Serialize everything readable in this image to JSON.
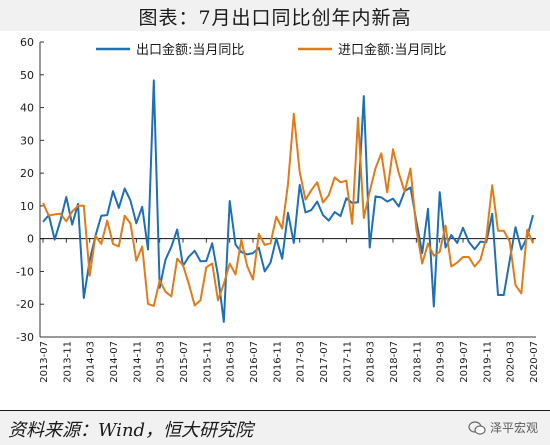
{
  "title": "图表：7月出口同比创年内新高",
  "source": "资料来源：Wind，恒大研究院",
  "watermark": "泽平宏观",
  "chart_data": {
    "type": "line",
    "x": [
      "2013-07",
      "2013-08",
      "2013-09",
      "2013-10",
      "2013-11",
      "2013-12",
      "2014-01",
      "2014-02",
      "2014-03",
      "2014-04",
      "2014-05",
      "2014-06",
      "2014-07",
      "2014-08",
      "2014-09",
      "2014-10",
      "2014-11",
      "2014-12",
      "2015-01",
      "2015-02",
      "2015-03",
      "2015-04",
      "2015-05",
      "2015-06",
      "2015-07",
      "2015-08",
      "2015-09",
      "2015-10",
      "2015-11",
      "2015-12",
      "2016-01",
      "2016-02",
      "2016-03",
      "2016-04",
      "2016-05",
      "2016-06",
      "2016-07",
      "2016-08",
      "2016-09",
      "2016-10",
      "2016-11",
      "2016-12",
      "2017-01",
      "2017-02",
      "2017-03",
      "2017-04",
      "2017-05",
      "2017-06",
      "2017-07",
      "2017-08",
      "2017-09",
      "2017-10",
      "2017-11",
      "2017-12",
      "2018-01",
      "2018-02",
      "2018-03",
      "2018-04",
      "2018-05",
      "2018-06",
      "2018-07",
      "2018-08",
      "2018-09",
      "2018-10",
      "2018-11",
      "2018-12",
      "2019-01",
      "2019-02",
      "2019-03",
      "2019-04",
      "2019-05",
      "2019-06",
      "2019-07",
      "2019-08",
      "2019-09",
      "2019-10",
      "2019-11",
      "2019-12",
      "2020-01",
      "2020-02",
      "2020-03",
      "2020-04",
      "2020-05",
      "2020-06",
      "2020-07"
    ],
    "x_tick_labels": [
      "2013-07",
      "2013-11",
      "2014-03",
      "2014-07",
      "2014-11",
      "2015-03",
      "2015-07",
      "2015-11",
      "2016-03",
      "2016-07",
      "2016-11",
      "2017-03",
      "2017-07",
      "2017-11",
      "2018-03",
      "2018-07",
      "2018-11",
      "2019-03",
      "2019-07",
      "2019-11",
      "2020-03",
      "2020-07"
    ],
    "series": [
      {
        "name": "出口金额:当月同比",
        "color": "#1f6fb4",
        "values": [
          5.1,
          7.2,
          -0.3,
          5.6,
          12.7,
          4.3,
          10.6,
          -18.1,
          -6.6,
          0.9,
          7.0,
          7.2,
          14.5,
          9.4,
          15.3,
          11.6,
          4.7,
          9.7,
          -3.3,
          48.3,
          -15.0,
          -6.4,
          -2.5,
          2.8,
          -8.3,
          -5.5,
          -3.7,
          -6.9,
          -6.8,
          -1.4,
          -11.2,
          -25.4,
          11.5,
          -1.8,
          -4.1,
          -4.8,
          -4.4,
          -2.8,
          -10.0,
          -7.3,
          0.1,
          -6.1,
          7.9,
          -1.3,
          16.4,
          8.0,
          8.7,
          11.3,
          7.2,
          5.5,
          8.1,
          6.9,
          12.3,
          10.9,
          11.1,
          43.5,
          -2.7,
          12.9,
          12.6,
          11.3,
          12.2,
          9.8,
          14.5,
          15.6,
          5.4,
          -4.4,
          9.1,
          -20.7,
          14.2,
          -2.7,
          1.1,
          -1.3,
          3.3,
          -1.0,
          -3.2,
          -0.9,
          -1.1,
          7.6,
          -17.2,
          -17.2,
          -6.6,
          3.5,
          -3.3,
          0.5,
          7.2
        ]
      },
      {
        "name": "进口金额:当月同比",
        "color": "#e07b1a",
        "values": [
          10.9,
          7.0,
          7.4,
          7.6,
          5.3,
          8.3,
          10.0,
          10.1,
          -11.3,
          0.8,
          -1.6,
          5.5,
          -1.6,
          -2.4,
          7.0,
          4.6,
          -6.7,
          -2.4,
          -19.9,
          -20.5,
          -12.7,
          -16.2,
          -17.6,
          -6.1,
          -8.1,
          -13.8,
          -20.4,
          -18.8,
          -8.7,
          -7.6,
          -18.8,
          -13.8,
          -7.6,
          -10.9,
          -0.4,
          -8.4,
          -12.5,
          1.5,
          -1.9,
          -1.4,
          6.7,
          3.1,
          16.7,
          38.1,
          20.3,
          11.9,
          14.8,
          17.2,
          11.0,
          13.3,
          18.7,
          17.2,
          17.7,
          4.5,
          36.9,
          6.3,
          14.4,
          21.5,
          26.0,
          14.1,
          27.3,
          20.0,
          14.3,
          21.4,
          3.0,
          -7.6,
          -1.5,
          -5.2,
          -4.0,
          4.0,
          -8.5,
          -7.3,
          -5.6,
          -5.6,
          -8.5,
          -6.4,
          0.3,
          16.3,
          2.4,
          2.4,
          -0.9,
          -14.2,
          -16.7,
          2.7,
          -1.4
        ]
      }
    ],
    "ylim": [
      -30,
      60
    ],
    "yticks": [
      -30,
      -20,
      -10,
      0,
      10,
      20,
      30,
      40,
      50,
      60
    ],
    "legend_position": "top",
    "grid": false
  }
}
